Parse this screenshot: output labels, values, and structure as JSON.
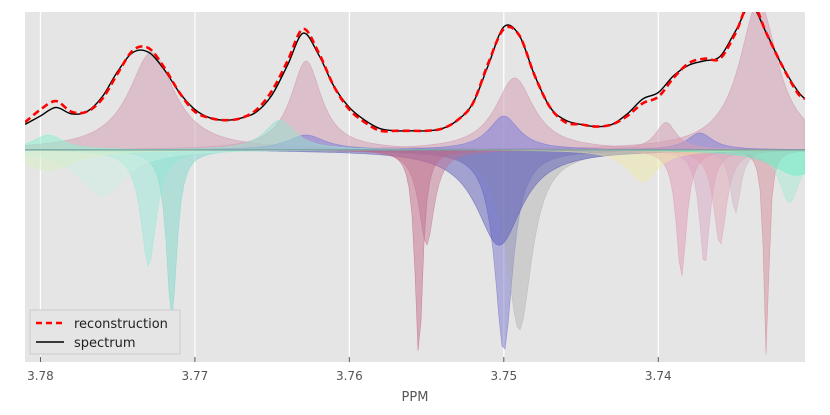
{
  "chart_data": {
    "type": "area",
    "xlabel": "PPM",
    "ylabel": "",
    "x_reversed": true,
    "xlim": [
      3.781,
      3.7305
    ],
    "ylim": [
      -1.0,
      0.65
    ],
    "xticks": [
      3.78,
      3.77,
      3.76,
      3.75,
      3.74
    ],
    "xtick_labels": [
      "3.78",
      "3.77",
      "3.76",
      "3.75",
      "3.74"
    ],
    "grid": true,
    "legend": {
      "placement": "lower-left",
      "entries": [
        {
          "label": "reconstruction",
          "color": "#ff0000",
          "style": "dashed"
        },
        {
          "label": "spectrum",
          "color": "#000000",
          "style": "solid"
        }
      ]
    },
    "series": [
      {
        "name": "spectrum",
        "color": "#000000",
        "x": [
          3.781,
          3.78,
          3.779,
          3.778,
          3.777,
          3.776,
          3.775,
          3.774,
          3.773,
          3.772,
          3.771,
          3.77,
          3.769,
          3.768,
          3.767,
          3.766,
          3.765,
          3.764,
          3.763,
          3.762,
          3.761,
          3.76,
          3.759,
          3.758,
          3.757,
          3.756,
          3.755,
          3.754,
          3.753,
          3.752,
          3.751,
          3.75,
          3.749,
          3.748,
          3.747,
          3.746,
          3.745,
          3.744,
          3.743,
          3.742,
          3.741,
          3.74,
          3.739,
          3.738,
          3.737,
          3.736,
          3.735,
          3.734,
          3.733,
          3.732,
          3.731,
          3.7305
        ],
        "y": [
          0.12,
          0.16,
          0.2,
          0.17,
          0.18,
          0.25,
          0.37,
          0.46,
          0.46,
          0.38,
          0.27,
          0.19,
          0.15,
          0.14,
          0.15,
          0.18,
          0.26,
          0.4,
          0.55,
          0.45,
          0.3,
          0.2,
          0.14,
          0.1,
          0.09,
          0.09,
          0.09,
          0.1,
          0.14,
          0.22,
          0.4,
          0.58,
          0.54,
          0.35,
          0.2,
          0.14,
          0.12,
          0.11,
          0.12,
          0.17,
          0.24,
          0.27,
          0.35,
          0.4,
          0.42,
          0.44,
          0.56,
          0.68,
          0.55,
          0.4,
          0.28,
          0.24
        ]
      },
      {
        "name": "reconstruction",
        "color": "#ff0000",
        "x": [
          3.781,
          3.78,
          3.779,
          3.778,
          3.777,
          3.776,
          3.775,
          3.774,
          3.773,
          3.772,
          3.771,
          3.77,
          3.769,
          3.768,
          3.767,
          3.766,
          3.765,
          3.764,
          3.763,
          3.762,
          3.761,
          3.76,
          3.759,
          3.758,
          3.757,
          3.756,
          3.755,
          3.754,
          3.753,
          3.752,
          3.751,
          3.75,
          3.749,
          3.748,
          3.747,
          3.746,
          3.745,
          3.744,
          3.743,
          3.742,
          3.741,
          3.74,
          3.739,
          3.738,
          3.737,
          3.736,
          3.735,
          3.734,
          3.733,
          3.732,
          3.731,
          3.7305
        ],
        "y": [
          0.13,
          0.19,
          0.23,
          0.18,
          0.18,
          0.24,
          0.36,
          0.47,
          0.48,
          0.39,
          0.27,
          0.18,
          0.15,
          0.14,
          0.15,
          0.19,
          0.28,
          0.42,
          0.57,
          0.46,
          0.3,
          0.19,
          0.13,
          0.09,
          0.09,
          0.09,
          0.09,
          0.1,
          0.14,
          0.22,
          0.41,
          0.57,
          0.54,
          0.35,
          0.2,
          0.13,
          0.12,
          0.11,
          0.12,
          0.16,
          0.22,
          0.25,
          0.34,
          0.41,
          0.43,
          0.43,
          0.55,
          0.7,
          0.55,
          0.4,
          0.27,
          0.24
        ]
      }
    ],
    "positive_components": [
      {
        "center": 3.7728,
        "amplitude": 0.46,
        "width": 0.0018,
        "color": "#d4a0b4"
      },
      {
        "center": 3.7628,
        "amplitude": 0.42,
        "width": 0.0012,
        "color": "#d4a0b4"
      },
      {
        "center": 3.7493,
        "amplitude": 0.34,
        "width": 0.0015,
        "color": "#d4a0b4"
      },
      {
        "center": 3.7335,
        "amplitude": 0.7,
        "width": 0.0015,
        "color": "#d4a0b4"
      },
      {
        "center": 3.75,
        "amplitude": 0.16,
        "width": 0.0012,
        "color": "#7f7fd8"
      },
      {
        "center": 3.7628,
        "amplitude": 0.07,
        "width": 0.0015,
        "color": "#7f7fd8"
      },
      {
        "center": 3.7373,
        "amplitude": 0.08,
        "width": 0.001,
        "color": "#7f7fd8"
      },
      {
        "center": 3.7645,
        "amplitude": 0.14,
        "width": 0.0012,
        "color": "#9ae0d0"
      },
      {
        "center": 3.7395,
        "amplitude": 0.13,
        "width": 0.0008,
        "color": "#d4a0b4"
      },
      {
        "center": 3.7795,
        "amplitude": 0.07,
        "width": 0.0012,
        "color": "#8ff0d0"
      }
    ],
    "negative_components": [
      {
        "center": 3.75,
        "amplitude": 0.95,
        "width": 0.0007,
        "color": "#6a6ac8"
      },
      {
        "center": 3.749,
        "amplitude": 0.85,
        "width": 0.001,
        "color": "#b0b0b0"
      },
      {
        "center": 3.7503,
        "amplitude": 0.45,
        "width": 0.0018,
        "color": "#5050b8"
      },
      {
        "center": 3.7555,
        "amplitude": 0.98,
        "width": 0.0003,
        "color": "#c06080"
      },
      {
        "center": 3.755,
        "amplitude": 0.45,
        "width": 0.0006,
        "color": "#c07090"
      },
      {
        "center": 3.7715,
        "amplitude": 0.8,
        "width": 0.0004,
        "color": "#70d8c8"
      },
      {
        "center": 3.773,
        "amplitude": 0.55,
        "width": 0.0006,
        "color": "#90e8d8"
      },
      {
        "center": 3.776,
        "amplitude": 0.22,
        "width": 0.0018,
        "color": "#c8f0e0"
      },
      {
        "center": 3.7385,
        "amplitude": 0.6,
        "width": 0.0004,
        "color": "#e090b0"
      },
      {
        "center": 3.737,
        "amplitude": 0.55,
        "width": 0.0004,
        "color": "#d8a0c0"
      },
      {
        "center": 3.736,
        "amplitude": 0.45,
        "width": 0.0005,
        "color": "#e0a0b0"
      },
      {
        "center": 3.735,
        "amplitude": 0.3,
        "width": 0.0004,
        "color": "#d0b0c0"
      },
      {
        "center": 3.733,
        "amplitude": 0.98,
        "width": 0.0002,
        "color": "#d08090"
      },
      {
        "center": 3.7315,
        "amplitude": 0.25,
        "width": 0.0008,
        "color": "#a0e8d0"
      },
      {
        "center": 3.741,
        "amplitude": 0.15,
        "width": 0.0012,
        "color": "#f0e8a0"
      },
      {
        "center": 3.731,
        "amplitude": 0.12,
        "width": 0.002,
        "color": "#60f0c0"
      },
      {
        "center": 3.7795,
        "amplitude": 0.1,
        "width": 0.002,
        "color": "#d8f0c0"
      }
    ]
  }
}
